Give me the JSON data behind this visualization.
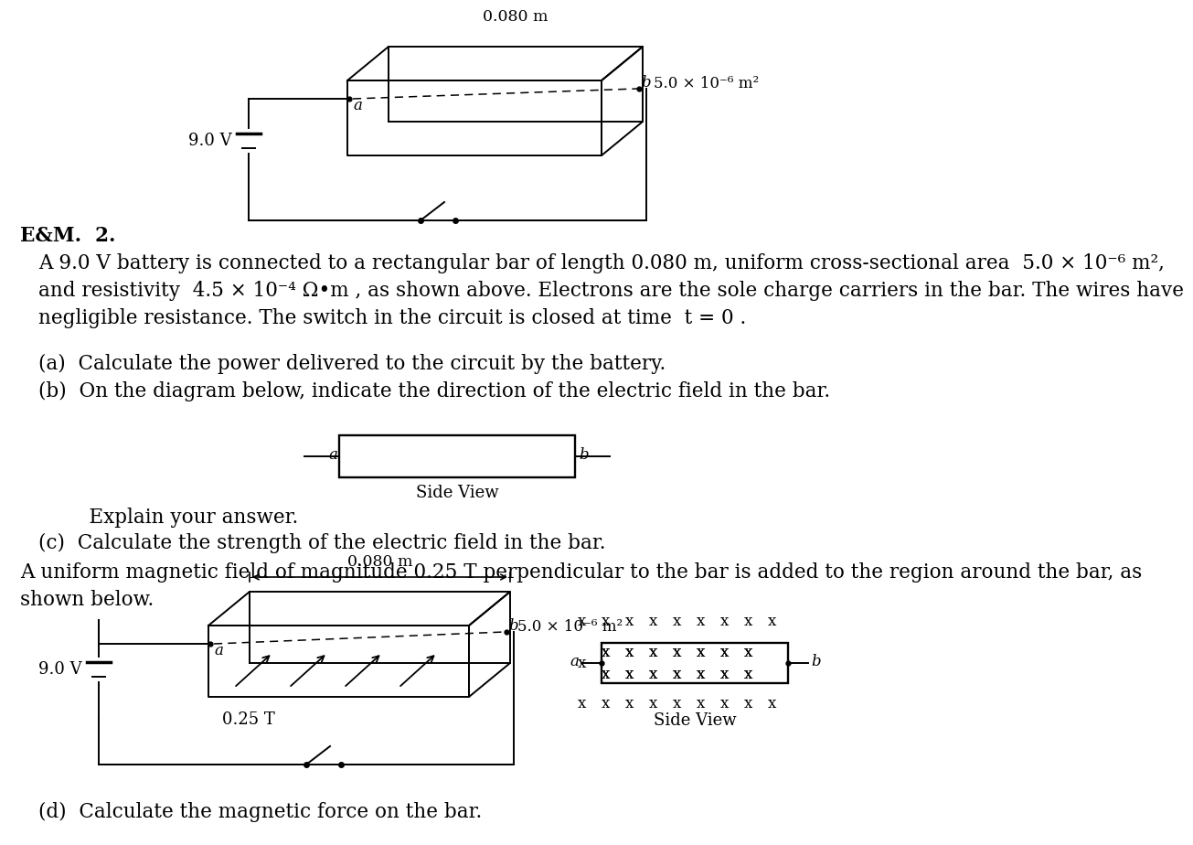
{
  "bg_color": "#ffffff",
  "text_color": "#000000",
  "title_label": "E&M.  2.",
  "para1": "A 9.0 V battery is connected to a rectangular bar of length 0.080 m, uniform cross-sectional area  5.0 × 10⁻⁶ m²,",
  "para2": "and resistivity  4.5 × 10⁻⁴ Ω•m , as shown above. Electrons are the sole charge carriers in the bar. The wires have",
  "para3": "negligible resistance. The switch in the circuit is closed at time  t = 0 .",
  "qa": "(a)  Calculate the power delivered to the circuit by the battery.",
  "qb": "(b)  On the diagram below, indicate the direction of the electric field in the bar.",
  "side_view_label": "Side View",
  "explain": "    Explain your answer.",
  "qc": "(c)  Calculate the strength of the electric field in the bar.",
  "para_mag": "A uniform magnetic field of magnitude 0.25 T perpendicular to the bar is added to the region around the bar, as",
  "para_mag2": "shown below.",
  "qd": "(d)  Calculate the magnetic force on the bar.",
  "voltage": "9.0 V",
  "length_label": "0.080 m",
  "area_label": "5.0 × 10⁻⁶ m²",
  "mag_label": "0.25 T",
  "font_size": 15.5
}
